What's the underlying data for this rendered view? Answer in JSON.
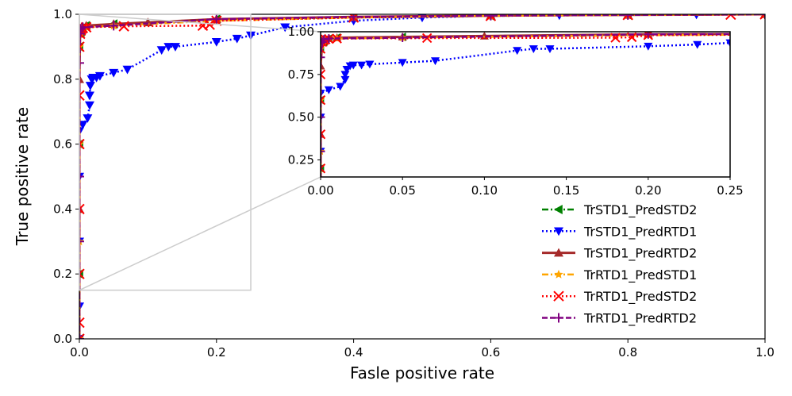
{
  "chart_data": {
    "type": "line",
    "title": "",
    "xlabel": "Fasle positive rate",
    "ylabel": "True positive rate",
    "xlim": [
      0.0,
      1.0
    ],
    "ylim": [
      0.0,
      1.0
    ],
    "xticks": [
      "0.0",
      "0.2",
      "0.4",
      "0.6",
      "0.8",
      "1.0"
    ],
    "yticks": [
      "0.0",
      "0.2",
      "0.4",
      "0.6",
      "0.8",
      "1.0"
    ],
    "grid": false,
    "legend_position": "lower-right",
    "series": [
      {
        "name": "TrSTD1_PredSTD2",
        "color": "#008000",
        "linestyle": "dashdot",
        "marker": "triangle-left",
        "x": [
          0.0,
          0.0,
          0.0,
          0.0,
          0.002,
          0.003,
          0.005,
          0.01,
          0.05,
          0.2,
          0.4,
          0.6,
          0.8,
          1.0
        ],
        "y": [
          0.0,
          0.2,
          0.6,
          0.9,
          0.94,
          0.955,
          0.96,
          0.965,
          0.97,
          0.985,
          0.99,
          0.995,
          0.998,
          1.0
        ]
      },
      {
        "name": "TrSTD1_PredRTD1",
        "color": "#0000ff",
        "linestyle": "dotted",
        "marker": "triangle-down",
        "x": [
          0.0,
          0.0,
          0.0,
          0.0,
          0.0,
          0.005,
          0.012,
          0.015,
          0.015,
          0.016,
          0.018,
          0.02,
          0.025,
          0.03,
          0.05,
          0.07,
          0.12,
          0.13,
          0.14,
          0.2,
          0.23,
          0.25,
          0.3,
          0.4,
          0.5,
          0.6,
          0.7,
          0.8,
          0.9,
          1.0
        ],
        "y": [
          0.0,
          0.1,
          0.3,
          0.5,
          0.64,
          0.66,
          0.68,
          0.72,
          0.75,
          0.78,
          0.8,
          0.805,
          0.805,
          0.81,
          0.82,
          0.83,
          0.89,
          0.9,
          0.9,
          0.915,
          0.925,
          0.935,
          0.96,
          0.98,
          0.99,
          0.995,
          0.997,
          0.998,
          0.999,
          1.0
        ]
      },
      {
        "name": "TrSTD1_PredRTD2",
        "color": "#a52a2a",
        "linestyle": "solid",
        "marker": "triangle-up",
        "x": [
          0.0,
          0.0,
          0.0,
          0.001,
          0.002,
          0.003,
          0.01,
          0.05,
          0.1,
          0.2,
          0.4,
          0.6,
          0.8,
          1.0
        ],
        "y": [
          0.0,
          0.4,
          0.8,
          0.94,
          0.955,
          0.96,
          0.965,
          0.97,
          0.975,
          0.985,
          0.992,
          0.996,
          0.998,
          1.0
        ]
      },
      {
        "name": "TrRTD1_PredSTD1",
        "color": "#ffa500",
        "linestyle": "dashdot",
        "marker": "star",
        "x": [
          0.0,
          0.0,
          0.0,
          0.0,
          0.002,
          0.003,
          0.01,
          0.05,
          0.2,
          0.4,
          0.6,
          0.8,
          1.0
        ],
        "y": [
          0.0,
          0.3,
          0.6,
          0.9,
          0.945,
          0.955,
          0.96,
          0.965,
          0.98,
          0.99,
          0.995,
          0.998,
          1.0
        ]
      },
      {
        "name": "TrRTD1_PredSTD2",
        "color": "#ff0000",
        "linestyle": "dotted",
        "marker": "x",
        "x": [
          0.0,
          0.0,
          0.0,
          0.0,
          0.0,
          0.0,
          0.0,
          0.001,
          0.002,
          0.003,
          0.005,
          0.01,
          0.065,
          0.18,
          0.19,
          0.2,
          0.4,
          0.6,
          0.8,
          0.95,
          1.0
        ],
        "y": [
          0.0,
          0.05,
          0.2,
          0.4,
          0.6,
          0.75,
          0.9,
          0.94,
          0.95,
          0.955,
          0.958,
          0.96,
          0.963,
          0.965,
          0.968,
          0.98,
          0.99,
          0.995,
          0.998,
          0.999,
          1.0
        ]
      },
      {
        "name": "TrRTD1_PredRTD2",
        "color": "#800080",
        "linestyle": "dashed",
        "marker": "plus",
        "x": [
          0.0,
          0.0,
          0.0,
          0.0,
          0.001,
          0.002,
          0.005,
          0.05,
          0.2,
          0.4,
          0.6,
          0.8,
          1.0
        ],
        "y": [
          0.0,
          0.3,
          0.5,
          0.85,
          0.94,
          0.955,
          0.96,
          0.965,
          0.985,
          0.992,
          0.996,
          0.998,
          1.0
        ]
      }
    ],
    "inset": {
      "xlim": [
        0.0,
        0.25
      ],
      "ylim": [
        0.15,
        1.0
      ],
      "xticks": [
        "0.00",
        "0.05",
        "0.10",
        "0.15",
        "0.20",
        "0.25"
      ],
      "yticks": [
        "0.25",
        "0.50",
        "0.75",
        "1.00"
      ]
    }
  }
}
